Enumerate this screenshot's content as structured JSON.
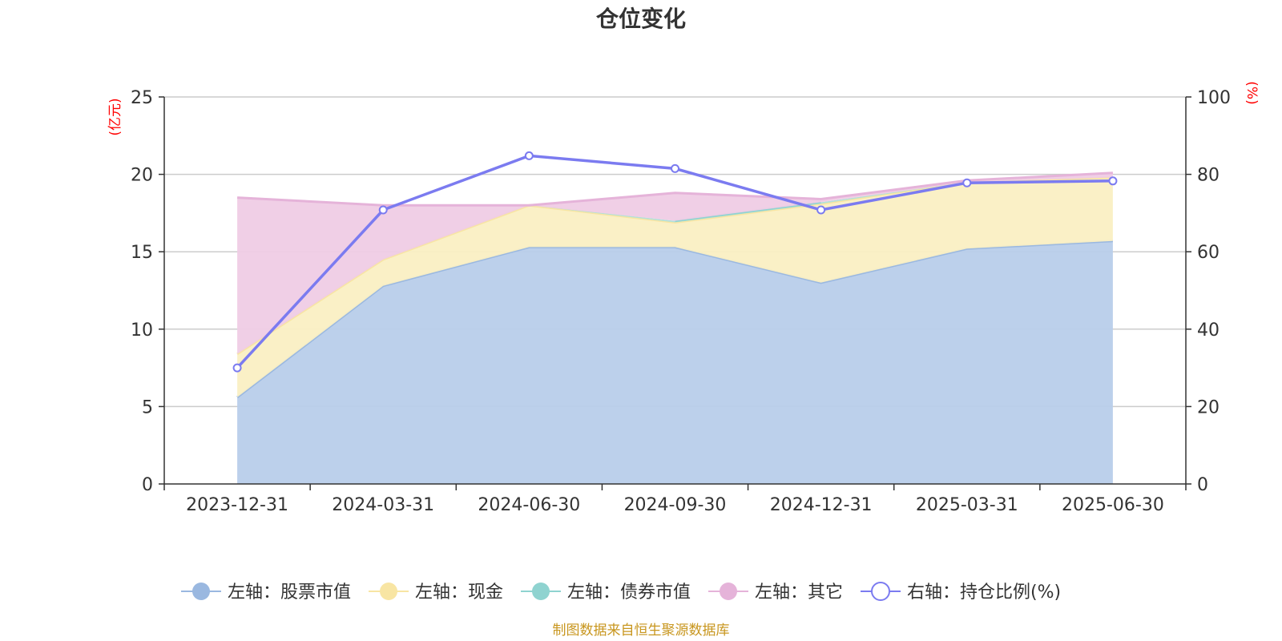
{
  "chart_data": {
    "type": "area",
    "title": "仓位变化",
    "categories": [
      "2023-12-31",
      "2024-03-31",
      "2024-06-30",
      "2024-09-30",
      "2024-12-31",
      "2025-03-31",
      "2025-06-30"
    ],
    "left_axis": {
      "unit": "(亿元)",
      "ylim": [
        0,
        25
      ],
      "ticks": [
        0,
        5,
        10,
        15,
        20,
        25
      ]
    },
    "right_axis": {
      "unit": "(%)",
      "ylim": [
        0,
        100
      ],
      "ticks": [
        0,
        20,
        40,
        60,
        80,
        100
      ]
    },
    "grid": true,
    "legend_position": "bottom",
    "stacked": true,
    "series": [
      {
        "name": "左轴：股票市值",
        "axis": "left",
        "kind": "area",
        "color": "#9ab8e0",
        "fill": "#b8cdea",
        "values": [
          5.6,
          12.8,
          15.3,
          15.3,
          13.0,
          15.2,
          15.7
        ]
      },
      {
        "name": "左轴：现金",
        "axis": "left",
        "kind": "area",
        "color": "#f8e5a3",
        "fill": "#faefc3",
        "values": [
          2.8,
          1.7,
          2.7,
          1.6,
          5.1,
          4.3,
          4.1
        ]
      },
      {
        "name": "左轴：债券市值",
        "axis": "left",
        "kind": "area",
        "color": "#8fd3d0",
        "fill": "#aee0dd",
        "values": [
          0,
          0,
          0,
          0.1,
          0.1,
          0,
          0
        ]
      },
      {
        "name": "左轴：其它",
        "axis": "left",
        "kind": "area",
        "color": "#e5b3d9",
        "fill": "#efcce5",
        "values": [
          10.1,
          3.5,
          0.0,
          1.8,
          0.2,
          0.1,
          0.3
        ]
      },
      {
        "name": "右轴：持仓比例(%)",
        "axis": "right",
        "kind": "line",
        "color": "#7b7bf0",
        "values": [
          30.0,
          70.8,
          84.8,
          81.5,
          70.8,
          77.8,
          78.3
        ]
      }
    ]
  },
  "source_note": "制图数据来自恒生聚源数据库"
}
